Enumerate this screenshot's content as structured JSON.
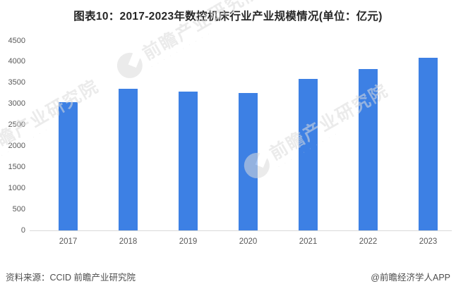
{
  "title": "图表10：2017-2023年数控机床行业产业规模情况(单位：亿元)",
  "footer": {
    "source": "资料来源：CCID 前瞻产业研究院",
    "credit": "@前瞻经济学人APP"
  },
  "watermark": {
    "text": "前瞻产业研究院"
  },
  "colors": {
    "bar": "#3d80e4",
    "axis_line": "#d9d9d9",
    "tick_label": "#595959",
    "title_text": "#262626",
    "footer_text": "#4d4d4d",
    "watermark": "#dcdcdc"
  },
  "chart_data": {
    "type": "bar",
    "title": "图表10：2017-2023年数控机床行业产业规模情况(单位：亿元)",
    "unit": "亿元",
    "categories": [
      "2017",
      "2018",
      "2019",
      "2020",
      "2021",
      "2022",
      "2023"
    ],
    "values": [
      3050,
      3360,
      3300,
      3260,
      3600,
      3830,
      4100
    ],
    "xlabel": "",
    "ylabel": "",
    "ylim": [
      0,
      4500
    ],
    "yticks": [
      0,
      500,
      1000,
      1500,
      2000,
      2500,
      3000,
      3500,
      4000,
      4500
    ],
    "grid": false,
    "legend_position": "none"
  }
}
